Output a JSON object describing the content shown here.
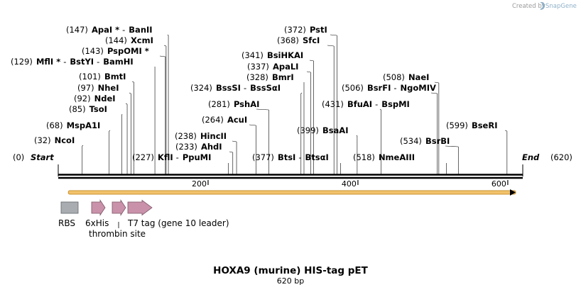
{
  "credit": "Created by",
  "brand": {
    "name": "SnapGene",
    "icon": "snapgene-logo-icon",
    "color": "#8fb0c8"
  },
  "title": "HOXA9 (murine) HIS-tag pET",
  "subtitle": "620 bp",
  "sequence_length": 620,
  "axis_ticks": [
    {
      "value": 200,
      "label": "200"
    },
    {
      "value": 400,
      "label": "400"
    },
    {
      "value": 600,
      "label": "600"
    }
  ],
  "ends": {
    "start": {
      "pos_label": "(0)",
      "name": "Start"
    },
    "end": {
      "pos_label": "(620)",
      "name": "End"
    }
  },
  "sites": [
    {
      "pos": 32,
      "pos_label": "(32)",
      "names": [
        "NcoI"
      ]
    },
    {
      "pos": 68,
      "pos_label": "(68)",
      "names": [
        "MspA1I"
      ]
    },
    {
      "pos": 85,
      "pos_label": "(85)",
      "names": [
        "TsoI"
      ]
    },
    {
      "pos": 92,
      "pos_label": "(92)",
      "names": [
        "NdeI"
      ]
    },
    {
      "pos": 97,
      "pos_label": "(97)",
      "names": [
        "NheI"
      ]
    },
    {
      "pos": 101,
      "pos_label": "(101)",
      "names": [
        "BmtI"
      ]
    },
    {
      "pos": 129,
      "pos_label": "(129)",
      "names": [
        "MflI *",
        "BstYI",
        "BamHI"
      ]
    },
    {
      "pos": 143,
      "pos_label": "(143)",
      "names": [
        "PspOMI *"
      ]
    },
    {
      "pos": 144,
      "pos_label": "(144)",
      "names": [
        "XcmI"
      ]
    },
    {
      "pos": 147,
      "pos_label": "(147)",
      "names": [
        "ApaI *",
        "BanII"
      ]
    },
    {
      "pos": 227,
      "pos_label": "(227)",
      "names": [
        "KflI",
        "PpuMI"
      ]
    },
    {
      "pos": 233,
      "pos_label": "(233)",
      "names": [
        "AhdI"
      ]
    },
    {
      "pos": 238,
      "pos_label": "(238)",
      "names": [
        "HincII"
      ]
    },
    {
      "pos": 264,
      "pos_label": "(264)",
      "names": [
        "AcuI"
      ]
    },
    {
      "pos": 281,
      "pos_label": "(281)",
      "names": [
        "PshAI"
      ]
    },
    {
      "pos": 324,
      "pos_label": "(324)",
      "names": [
        "BssSI",
        "BssSαI"
      ]
    },
    {
      "pos": 328,
      "pos_label": "(328)",
      "names": [
        "BmrI"
      ]
    },
    {
      "pos": 337,
      "pos_label": "(337)",
      "names": [
        "ApaLI"
      ]
    },
    {
      "pos": 341,
      "pos_label": "(341)",
      "names": [
        "BsiHKAI"
      ]
    },
    {
      "pos": 368,
      "pos_label": "(368)",
      "names": [
        "SfcI"
      ]
    },
    {
      "pos": 372,
      "pos_label": "(372)",
      "names": [
        "PstI"
      ]
    },
    {
      "pos": 377,
      "pos_label": "(377)",
      "names": [
        "BtsI",
        "BtsαI"
      ]
    },
    {
      "pos": 399,
      "pos_label": "(399)",
      "names": [
        "BsaAI"
      ]
    },
    {
      "pos": 431,
      "pos_label": "(431)",
      "names": [
        "BfuAI",
        "BspMI"
      ]
    },
    {
      "pos": 506,
      "pos_label": "(506)",
      "names": [
        "BsrFI",
        "NgoMIV"
      ]
    },
    {
      "pos": 508,
      "pos_label": "(508)",
      "names": [
        "NaeI"
      ]
    },
    {
      "pos": 518,
      "pos_label": "(518)",
      "names": [
        "NmeAIII"
      ]
    },
    {
      "pos": 534,
      "pos_label": "(534)",
      "names": [
        "BsrBI"
      ]
    },
    {
      "pos": 599,
      "pos_label": "(599)",
      "names": [
        "BseRI"
      ]
    }
  ],
  "orf": {
    "start": 4,
    "end": 620,
    "color": "#f2c36b",
    "stroke": "#c8902f"
  },
  "features": [
    {
      "id": "rbs",
      "label": "RBS",
      "shape": "box",
      "color": "#a9adb1"
    },
    {
      "id": "his",
      "label": "6xHis",
      "shape": "arrow",
      "color": "#c992aa"
    },
    {
      "id": "thrombin",
      "label": "thrombin site",
      "shape": "arrow",
      "color": "#c992aa"
    },
    {
      "id": "t7",
      "label": "T7 tag (gene 10 leader)",
      "shape": "arrow",
      "color": "#c992aa"
    }
  ]
}
